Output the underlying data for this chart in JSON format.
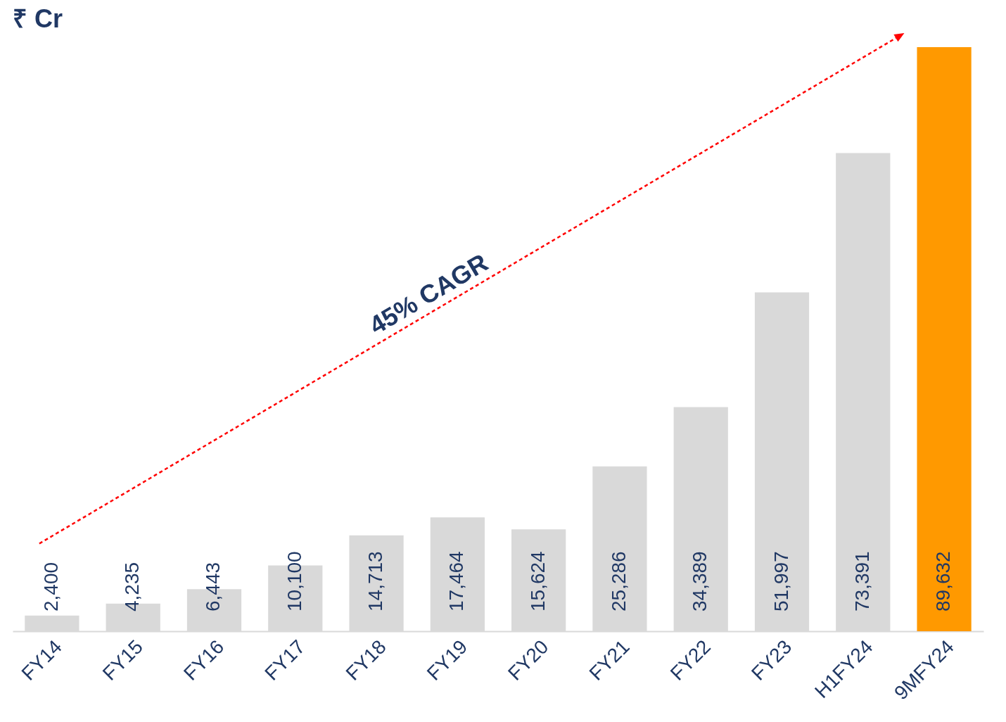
{
  "chart_data": {
    "type": "bar",
    "title": "₹ Cr",
    "categories": [
      "FY14",
      "FY15",
      "FY16",
      "FY17",
      "FY18",
      "FY19",
      "FY20",
      "FY21",
      "FY22",
      "FY23",
      "H1FY24",
      "9MFY24"
    ],
    "values": [
      2400,
      4235,
      6443,
      10100,
      14713,
      17464,
      15624,
      25286,
      34389,
      51997,
      73391,
      89632
    ],
    "colors": [
      "#d9d9d9",
      "#d9d9d9",
      "#d9d9d9",
      "#d9d9d9",
      "#d9d9d9",
      "#d9d9d9",
      "#d9d9d9",
      "#d9d9d9",
      "#d9d9d9",
      "#d9d9d9",
      "#d9d9d9",
      "#ff9900"
    ],
    "value_labels": [
      "2,400",
      "4,235",
      "6,443",
      "10,100",
      "14,713",
      "17,464",
      "15,624",
      "25,286",
      "34,389",
      "51,997",
      "73,391",
      "89,632"
    ],
    "annotations": [
      "45% CAGR"
    ]
  }
}
